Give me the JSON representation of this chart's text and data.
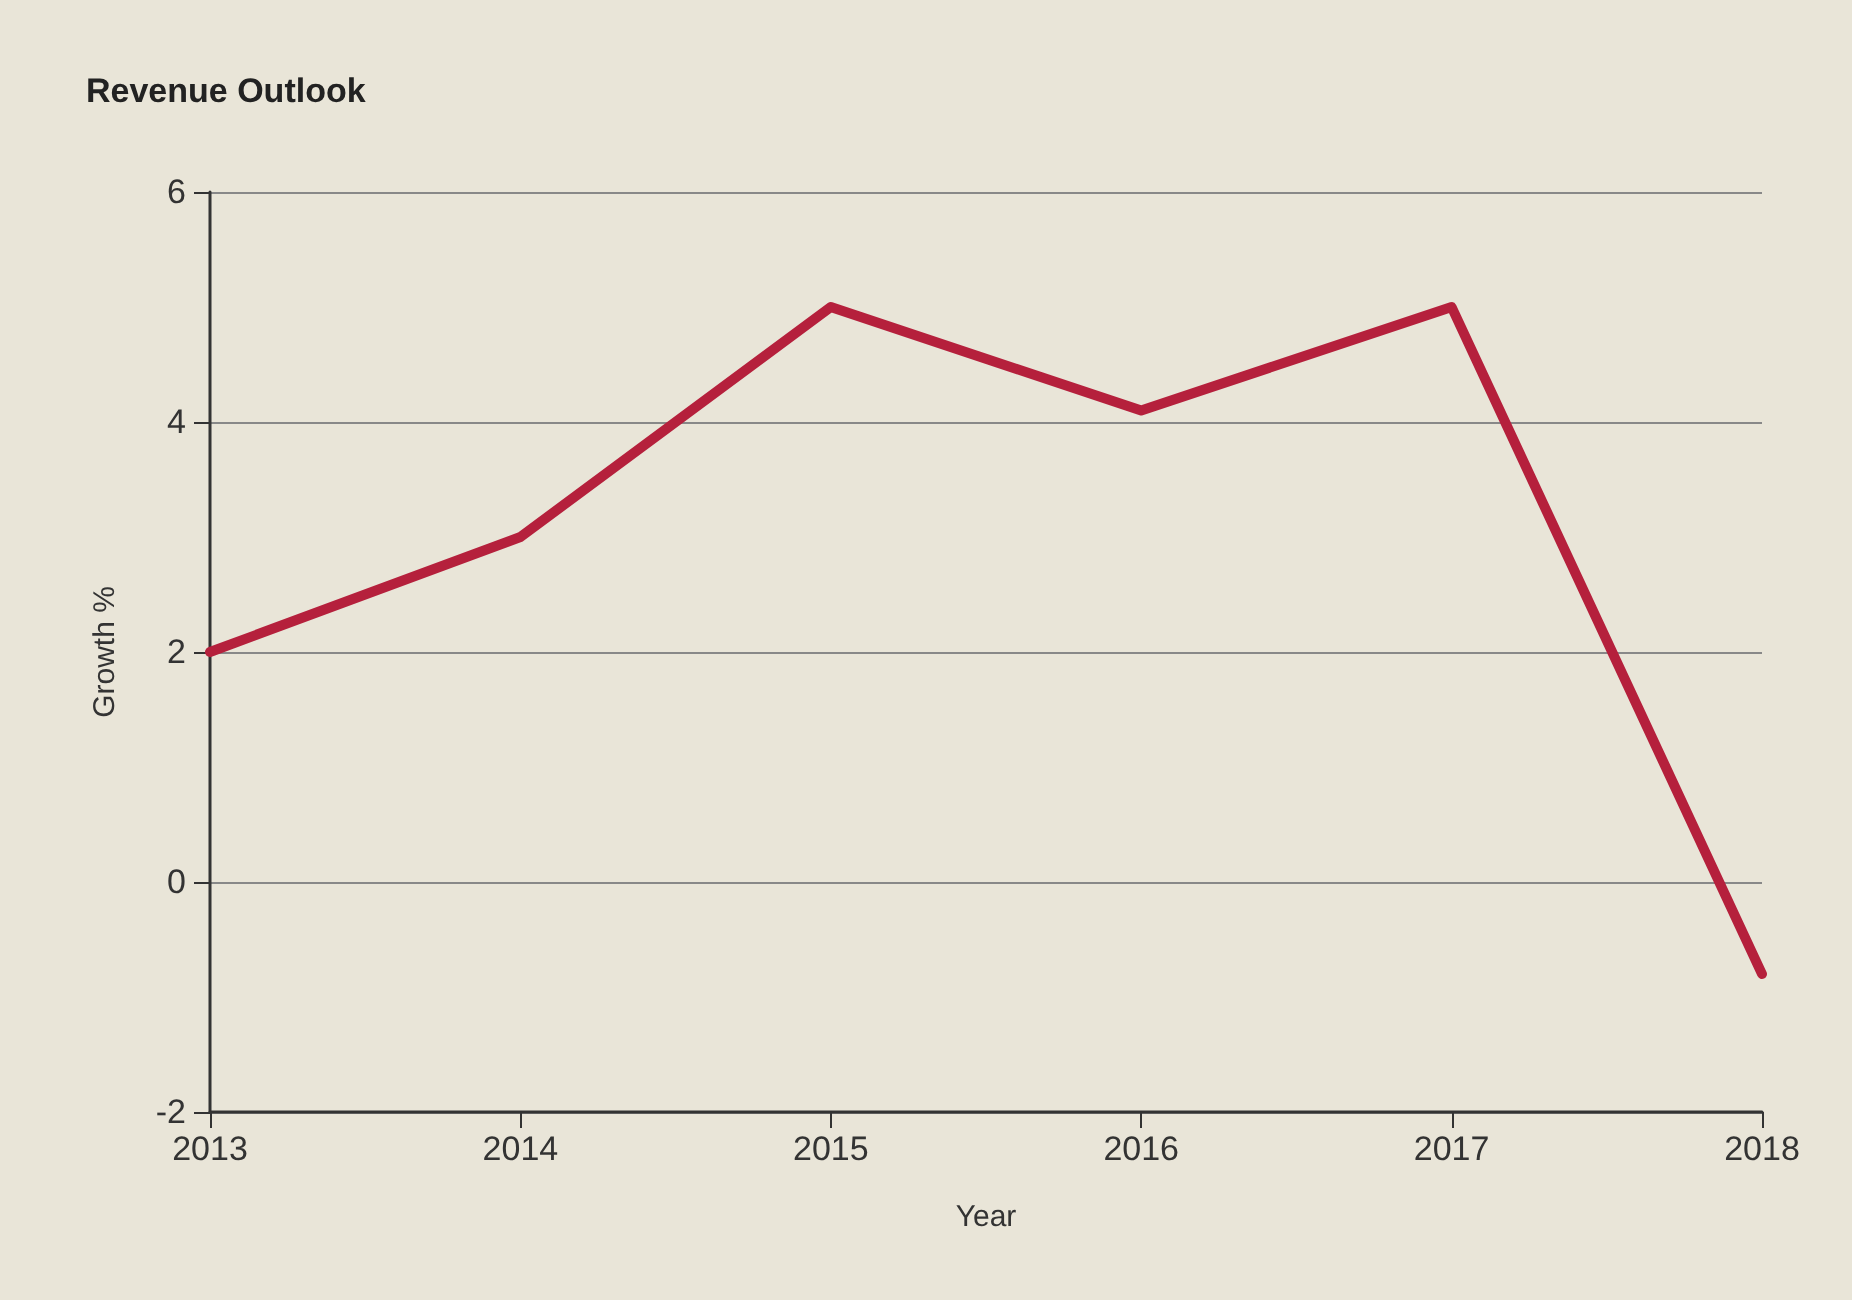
{
  "chart_data": {
    "type": "line",
    "title": "Revenue Outlook",
    "xlabel": "Year",
    "ylabel": "Growth %",
    "x": [
      2013,
      2014,
      2015,
      2016,
      2017,
      2018
    ],
    "series": [
      {
        "color": "#b5203c",
        "values": [
          2.0,
          3.0,
          5.0,
          4.1,
          5.0,
          -0.8
        ]
      }
    ],
    "xlim": [
      2013,
      2018
    ],
    "xticks": [
      2013,
      2014,
      2015,
      2016,
      2017,
      2018
    ],
    "ylim": [
      -2,
      6
    ],
    "yticks": [
      -2,
      0,
      2,
      4,
      6
    ],
    "grid": "y",
    "marker": "none",
    "line_style": "solid"
  }
}
